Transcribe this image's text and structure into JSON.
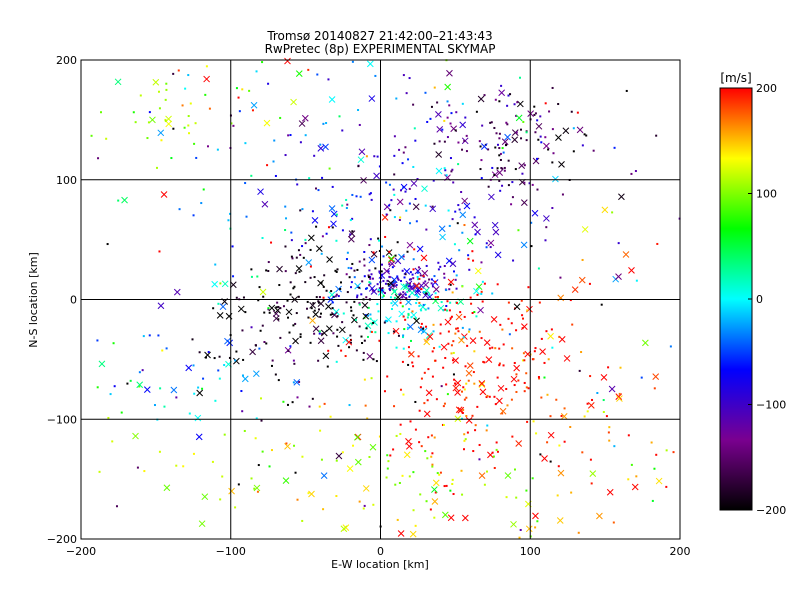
{
  "chart_data": {
    "type": "scatter",
    "title": "Tromsø 20140827 21:42:00–21:43:43",
    "subtitle": "RwPretec (8p) EXPERIMENTAL SKYMAP",
    "xlabel": "E-W location [km]",
    "ylabel": "N-S location [km]",
    "xlim": [
      -200,
      200
    ],
    "ylim": [
      -200,
      200
    ],
    "xticks": [
      -200,
      -100,
      0,
      100,
      200
    ],
    "yticks": [
      -200,
      -100,
      0,
      100,
      200
    ],
    "xtick_labels": [
      "−200",
      "−100",
      "0",
      "100",
      "200"
    ],
    "ytick_labels": [
      "−200",
      "−100",
      "0",
      "100",
      "200"
    ],
    "grid": true,
    "marker_types": [
      "dot",
      "cross"
    ],
    "colorbar": {
      "label": "[m/s]",
      "range": [
        -200,
        200
      ],
      "ticks": [
        200,
        100,
        0,
        -100,
        -200
      ],
      "tick_labels": [
        "200",
        "100",
        "0",
        "−100",
        "−200"
      ],
      "colormap": [
        "#000000",
        "#7a0090",
        "#0000ff",
        "#00ffff",
        "#00ff00",
        "#ffff00",
        "#ff0000"
      ]
    },
    "clusters": [
      {
        "x": 15,
        "y": 15,
        "sx": 18,
        "sy": 10,
        "v": -100,
        "n": 130
      },
      {
        "x": 20,
        "y": -10,
        "sx": 22,
        "sy": 15,
        "v": 10,
        "n": 100
      },
      {
        "x": 55,
        "y": -60,
        "sx": 35,
        "sy": 45,
        "v": 200,
        "n": 260
      },
      {
        "x": -50,
        "y": -15,
        "sx": 35,
        "sy": 22,
        "v": -200,
        "n": 140
      },
      {
        "x": -35,
        "y": 25,
        "sx": 30,
        "sy": 20,
        "v": -200,
        "n": 70
      },
      {
        "x": 95,
        "y": 130,
        "sx": 25,
        "sy": 20,
        "v": -170,
        "n": 90
      },
      {
        "x": 40,
        "y": 110,
        "sx": 55,
        "sy": 40,
        "v": -110,
        "n": 140
      },
      {
        "x": -10,
        "y": 80,
        "sx": 60,
        "sy": 50,
        "v": -30,
        "n": 110
      },
      {
        "x": 0,
        "y": -150,
        "sx": 80,
        "sy": 35,
        "v": 120,
        "n": 140
      },
      {
        "x": -140,
        "y": 160,
        "sx": 35,
        "sy": 25,
        "v": 110,
        "n": 45
      },
      {
        "x": -120,
        "y": -60,
        "sx": 40,
        "sy": 20,
        "v": -20,
        "n": 40
      },
      {
        "x": 150,
        "y": -60,
        "sx": 30,
        "sy": 60,
        "v": 190,
        "n": 50
      },
      {
        "x": -10,
        "y": 0,
        "sx": 150,
        "sy": 150,
        "v": 0,
        "vs": 160,
        "n": 280
      }
    ]
  }
}
